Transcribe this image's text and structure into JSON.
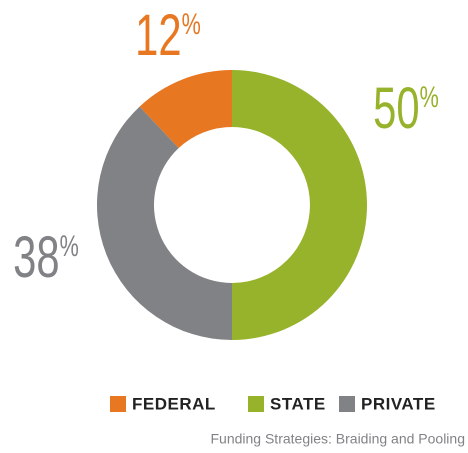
{
  "chart_data": {
    "type": "donut",
    "categories": [
      "FEDERAL",
      "STATE",
      "PRIVATE"
    ],
    "values": [
      12,
      50,
      38
    ],
    "value_labels": [
      "12%",
      "50%",
      "38%"
    ],
    "colors": [
      "#e87722",
      "#97b22b",
      "#808285"
    ],
    "caption": "Funding Strategies: Braiding and Pooling",
    "legend": "bottom-right"
  }
}
